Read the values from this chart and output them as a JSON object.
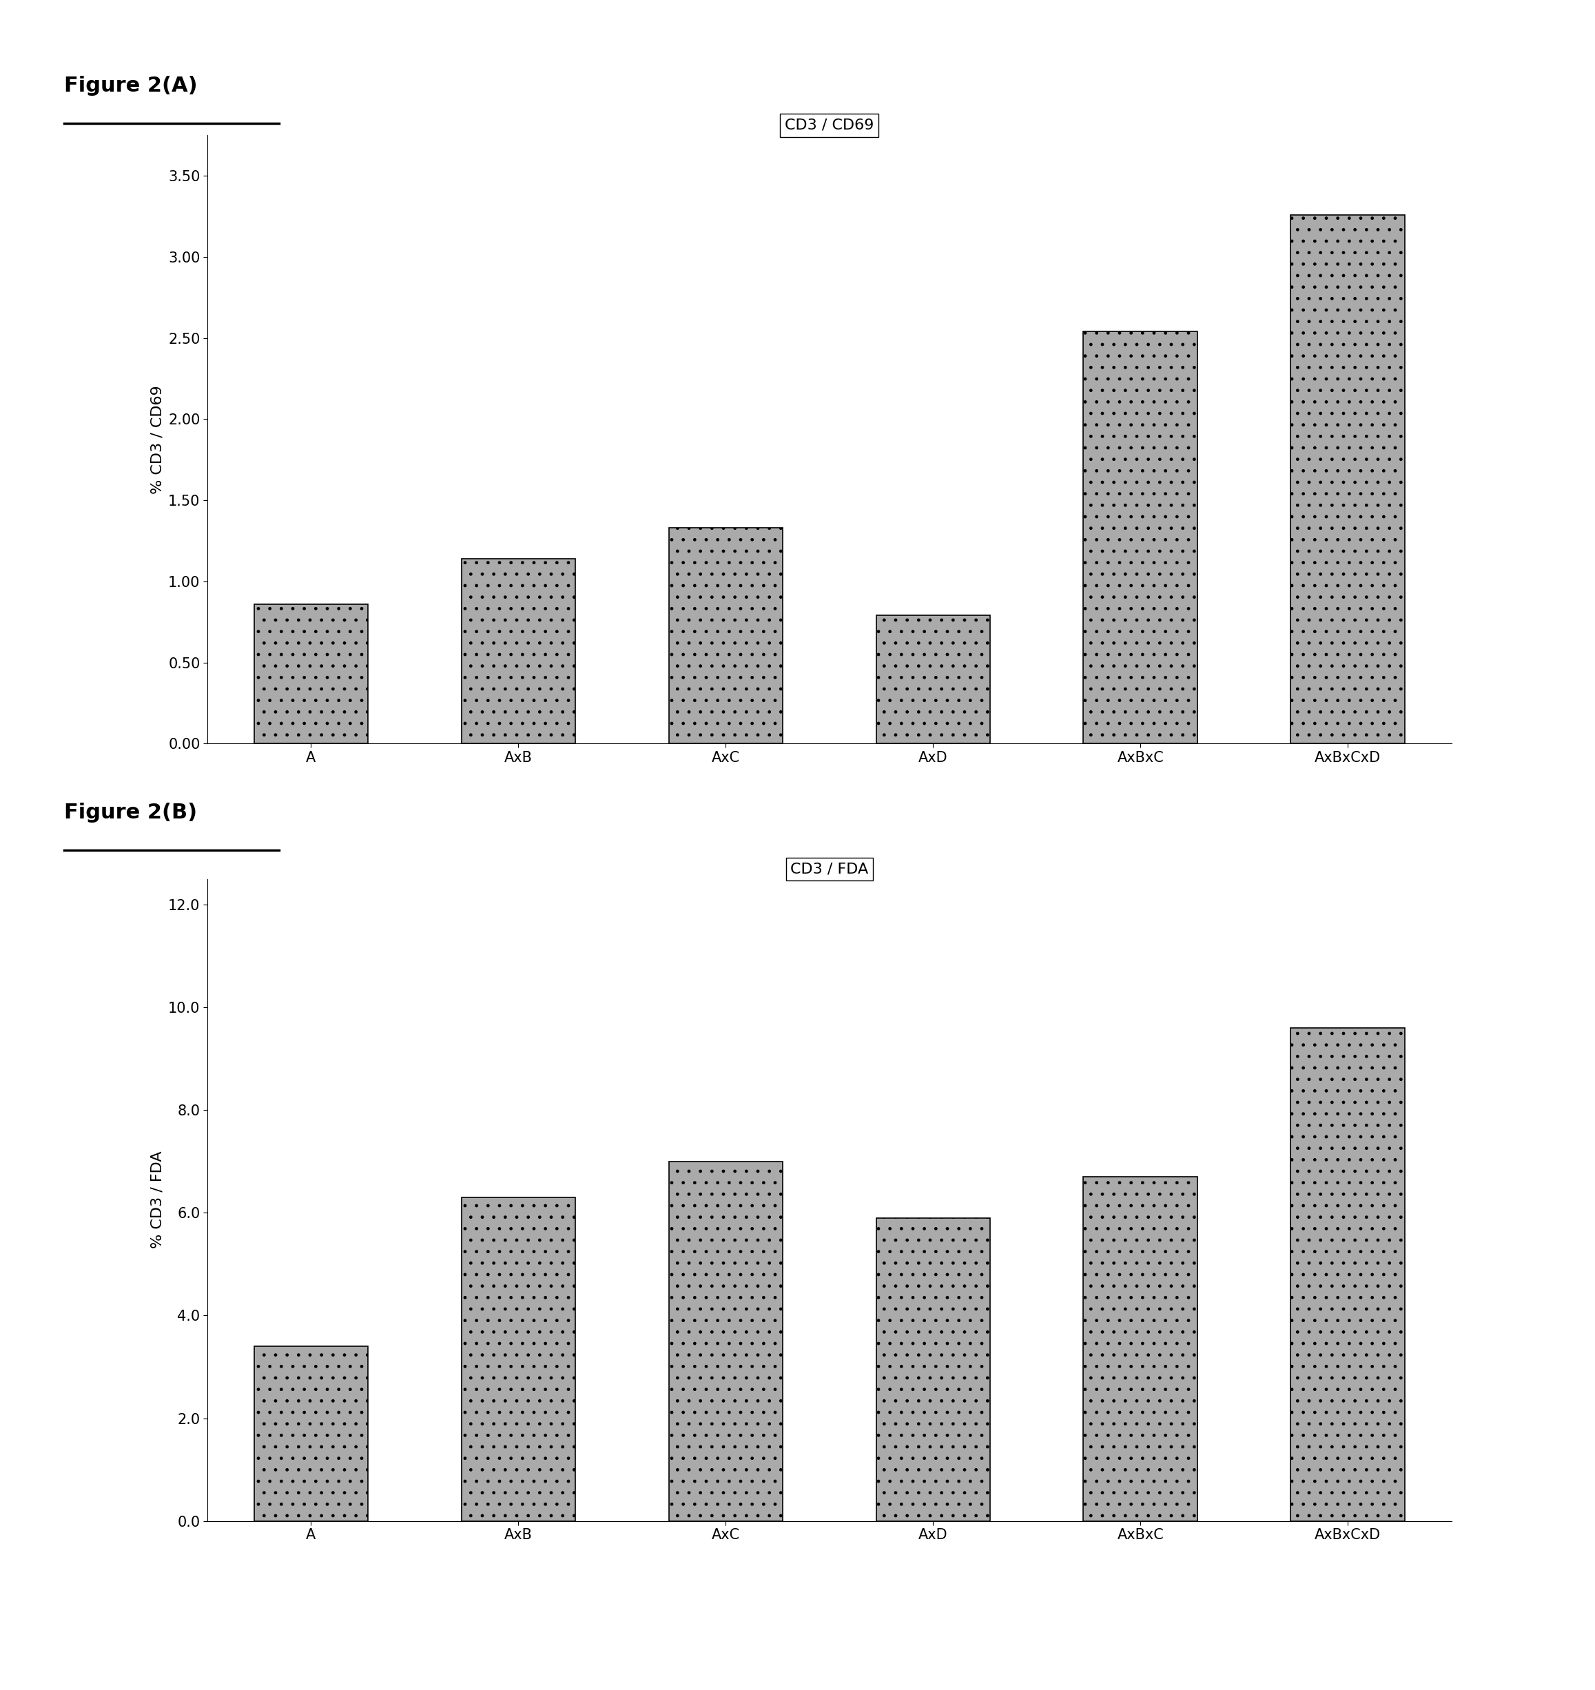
{
  "fig_title_A": "Figure 2(A)",
  "fig_title_B": "Figure 2(B)",
  "categories": [
    "A",
    "AxB",
    "AxC",
    "AxD",
    "AxBxC",
    "AxBxCxD"
  ],
  "chart_A": {
    "title": "CD3 / CD69",
    "ylabel": "% CD3 / CD69",
    "values": [
      0.86,
      1.14,
      1.33,
      0.79,
      2.54,
      3.26
    ],
    "ylim": [
      0,
      3.75
    ],
    "yticks": [
      0.0,
      0.5,
      1.0,
      1.5,
      2.0,
      2.5,
      3.0,
      3.5
    ]
  },
  "chart_B": {
    "title": "CD3 / FDA",
    "ylabel": "% CD3 / FDA",
    "values": [
      3.4,
      6.3,
      7.0,
      5.9,
      6.7,
      9.6
    ],
    "ylim": [
      0,
      12.5
    ],
    "yticks": [
      0.0,
      2.0,
      4.0,
      6.0,
      8.0,
      10.0,
      12.0
    ]
  },
  "bar_color": "#aaaaaa",
  "bar_edgecolor": "#000000",
  "hatch": ".",
  "figure_label_fontsize": 22,
  "axis_label_fontsize": 16,
  "tick_fontsize": 15,
  "chart_title_fontsize": 16,
  "bg_color": "#ffffff"
}
